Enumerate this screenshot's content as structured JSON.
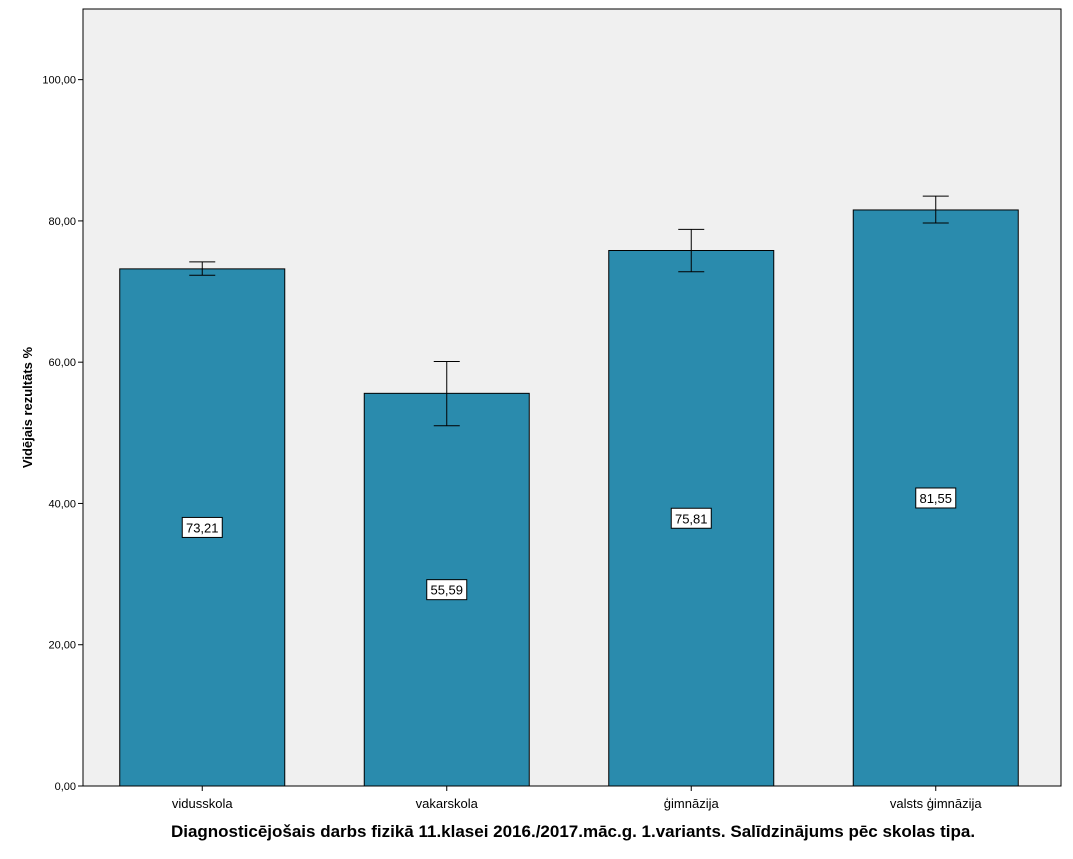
{
  "chart_data": {
    "type": "bar",
    "categories": [
      "vidusskola",
      "vakarskola",
      "ģimnāzija",
      "valsts ģimnāzija"
    ],
    "values": [
      73.21,
      55.59,
      75.81,
      81.55
    ],
    "value_labels": [
      "73,21",
      "55,59",
      "75,81",
      "81,55"
    ],
    "error_low": [
      72.3,
      51.0,
      72.8,
      79.7
    ],
    "error_high": [
      74.2,
      60.1,
      78.8,
      83.5
    ],
    "ylim": [
      0,
      110
    ],
    "yticks": [
      0,
      20,
      40,
      60,
      80,
      100
    ],
    "ytick_labels": [
      "0,00",
      "20,00",
      "40,00",
      "60,00",
      "80,00",
      "100,00"
    ],
    "ylabel": "Vidējais rezultāts %",
    "xlabel": "Diagnosticējošais darbs fizikā 11.klasei 2016./2017.māc.g. 1.variants. Salīdzinājums pēc skolas tipa.",
    "grid": false,
    "colors": {
      "bar": "#2a8bad",
      "plot_bg": "#f0f0f0",
      "error_bar": "#000000"
    }
  }
}
